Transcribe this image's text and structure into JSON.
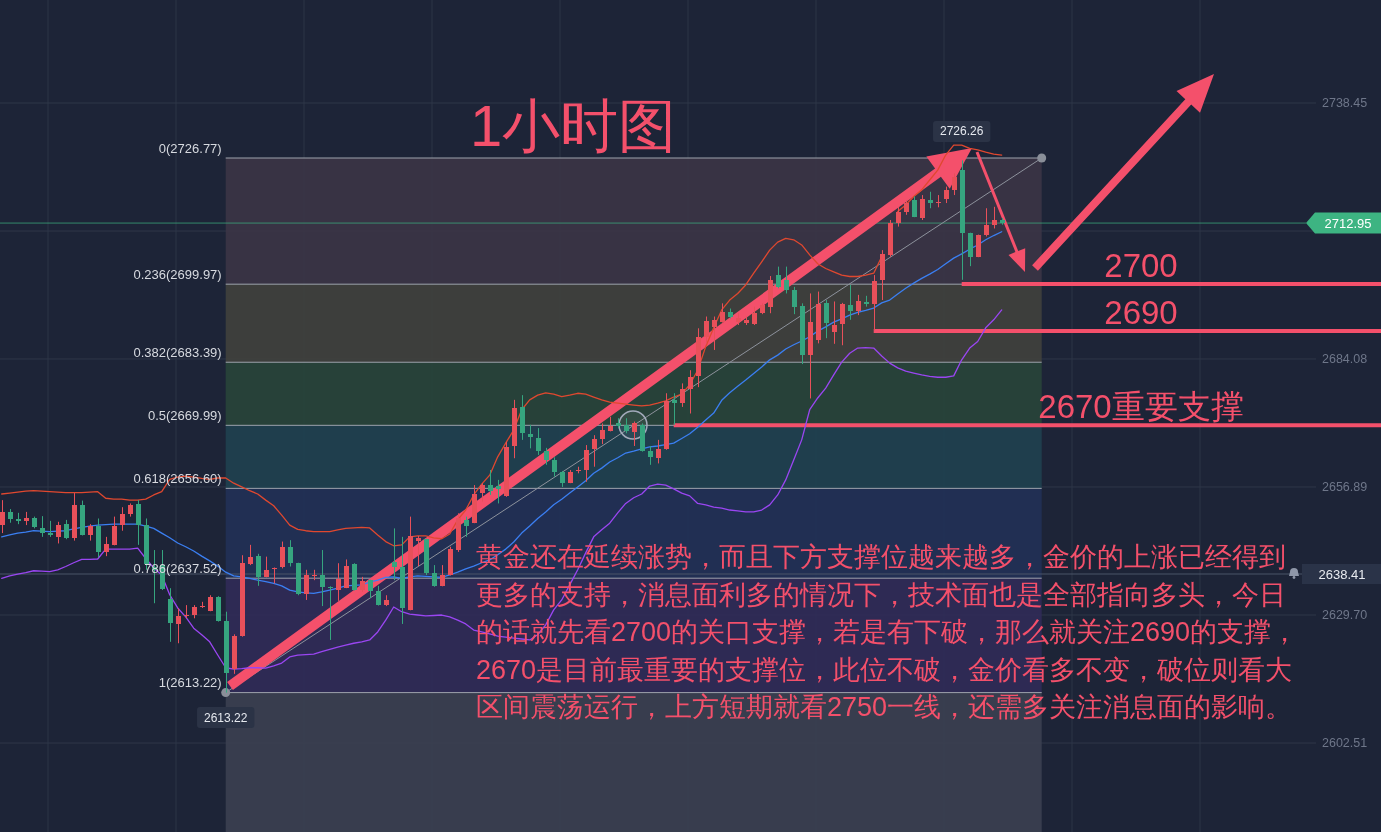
{
  "chart_data": {
    "type": "candlestick",
    "title": "1小时图",
    "categories": [
      null,
      null,
      null,
      null,
      null,
      null,
      null,
      null,
      null,
      null,
      null,
      null,
      null,
      null,
      null,
      null,
      null,
      null,
      null,
      null,
      null,
      null,
      null,
      null,
      null,
      null,
      null,
      null,
      null,
      null,
      null,
      null,
      null,
      null,
      null,
      null,
      null,
      null,
      null,
      null,
      null,
      null,
      null,
      null,
      null,
      null,
      null,
      null,
      null,
      null,
      null,
      null,
      null,
      null,
      null,
      null,
      null,
      null,
      null,
      null,
      null,
      null,
      null,
      null,
      null,
      null,
      null,
      null,
      null,
      null,
      null,
      null,
      null,
      null,
      null,
      null,
      null,
      null,
      null,
      null,
      null,
      null,
      null,
      null,
      null,
      null,
      null,
      null,
      null,
      null,
      null,
      null,
      null,
      null,
      null,
      null,
      null,
      null,
      null,
      null,
      null,
      null,
      null,
      null,
      null,
      null,
      null,
      null,
      null,
      null,
      null,
      null,
      null,
      null,
      null,
      null,
      null,
      null,
      null,
      null,
      null,
      null,
      null,
      null,
      null,
      null
    ],
    "ohlc": [
      [
        2648.8,
        2654.1,
        2647.1,
        2651.6
      ],
      [
        2651.6,
        2652.2,
        2649.3,
        2650.0
      ],
      [
        2650.0,
        2651.4,
        2649.0,
        2649.7
      ],
      [
        2649.7,
        2651.6,
        2648.8,
        2650.4
      ],
      [
        2650.4,
        2650.6,
        2648.1,
        2648.3
      ],
      [
        2648.2,
        2650.7,
        2646.3,
        2647.1
      ],
      [
        2647.1,
        2649.7,
        2646.3,
        2646.6
      ],
      [
        2646.3,
        2649.5,
        2644.9,
        2648.8
      ],
      [
        2649.0,
        2649.9,
        2645.8,
        2646.0
      ],
      [
        2646.0,
        2655.6,
        2645.5,
        2653.1
      ],
      [
        2653.1,
        2654.0,
        2646.6,
        2646.7
      ],
      [
        2646.7,
        2649.0,
        2645.5,
        2648.6
      ],
      [
        2648.6,
        2650.2,
        2642.0,
        2643.1
      ],
      [
        2643.1,
        2646.3,
        2642.2,
        2644.8
      ],
      [
        2644.6,
        2650.6,
        2644.5,
        2648.7
      ],
      [
        2648.8,
        2652.6,
        2647.6,
        2651.2
      ],
      [
        2651.2,
        2653.4,
        2650.6,
        2653.1
      ],
      [
        2653.3,
        2654.1,
        2644.6,
        2648.8
      ],
      [
        2648.8,
        2650.2,
        2639.3,
        2640.5
      ],
      [
        2640.0,
        2643.5,
        2632.2,
        2639.3
      ],
      [
        2640.3,
        2643.5,
        2635.0,
        2635.2
      ],
      [
        2633.0,
        2635.4,
        2624.0,
        2627.9
      ],
      [
        2627.8,
        2631.1,
        2623.7,
        2629.5
      ],
      [
        2629.5,
        2631.8,
        2629.0,
        2629.7
      ],
      [
        2629.6,
        2631.8,
        2629.0,
        2631.3
      ],
      [
        2631.3,
        2632.5,
        2631.2,
        2631.6
      ],
      [
        2630.6,
        2633.9,
        2630.5,
        2633.6
      ],
      [
        2633.6,
        2633.7,
        2628.3,
        2628.4
      ],
      [
        2628.4,
        2630.4,
        2613.22,
        2617.4
      ],
      [
        2618.2,
        2625.6,
        2617.2,
        2625.3
      ],
      [
        2625.3,
        2642.4,
        2625.1,
        2640.7
      ],
      [
        2640.5,
        2644.6,
        2640.3,
        2642.0
      ],
      [
        2642.2,
        2642.7,
        2635.9,
        2637.8
      ],
      [
        2637.8,
        2642.1,
        2637.7,
        2639.3
      ],
      [
        2639.4,
        2639.8,
        2636.4,
        2639.7
      ],
      [
        2639.8,
        2645.3,
        2639.6,
        2644.1
      ],
      [
        2644.1,
        2645.6,
        2640.0,
        2640.7
      ],
      [
        2640.7,
        2640.8,
        2633.9,
        2634.1
      ],
      [
        2634.1,
        2639.3,
        2632.9,
        2638.2
      ],
      [
        2638.1,
        2639.3,
        2637.1,
        2638.3
      ],
      [
        2638.3,
        2643.5,
        2631.6,
        2635.7
      ],
      [
        2635.7,
        2635.8,
        2624.4,
        2635.4
      ],
      [
        2635.0,
        2640.7,
        2632.7,
        2637.3
      ],
      [
        2635.5,
        2641.5,
        2635.4,
        2640.1
      ],
      [
        2640.5,
        2640.7,
        2634.9,
        2635.0
      ],
      [
        2635.0,
        2637.8,
        2634.6,
        2636.9
      ],
      [
        2637.1,
        2637.2,
        2633.3,
        2634.9
      ],
      [
        2634.8,
        2635.9,
        2631.7,
        2631.8
      ],
      [
        2631.8,
        2633.9,
        2631.6,
        2632.9
      ],
      [
        2641.0,
        2648.1,
        2637.1,
        2639.8
      ],
      [
        2639.8,
        2646.3,
        2627.8,
        2631.1
      ],
      [
        2630.8,
        2650.6,
        2630.7,
        2646.5
      ],
      [
        2645.5,
        2646.5,
        2640.1,
        2646.0
      ],
      [
        2645.8,
        2645.9,
        2638.2,
        2638.7
      ],
      [
        2638.7,
        2640.3,
        2635.7,
        2635.9
      ],
      [
        2635.9,
        2640.3,
        2635.8,
        2638.2
      ],
      [
        2638.2,
        2644.2,
        2638.1,
        2643.7
      ],
      [
        2643.5,
        2651.3,
        2643.1,
        2650.4
      ],
      [
        2649.9,
        2650.6,
        2646.3,
        2648.6
      ],
      [
        2649.3,
        2657.3,
        2649.2,
        2655.4
      ],
      [
        2655.7,
        2657.7,
        2653.8,
        2657.3
      ],
      [
        2657.3,
        2660.5,
        2655.2,
        2656.1
      ],
      [
        2657.1,
        2658.4,
        2653.4,
        2656.5
      ],
      [
        2655.0,
        2666.5,
        2654.8,
        2665.3
      ],
      [
        2665.6,
        2675.4,
        2663.0,
        2673.6
      ],
      [
        2673.8,
        2676.4,
        2666.9,
        2668.3
      ],
      [
        2668.2,
        2670.1,
        2665.1,
        2667.6
      ],
      [
        2667.4,
        2669.4,
        2663.7,
        2664.6
      ],
      [
        2664.5,
        2665.2,
        2661.6,
        2662.6
      ],
      [
        2662.6,
        2663.2,
        2659.1,
        2660.1
      ],
      [
        2660.1,
        2660.3,
        2656.9,
        2657.8
      ],
      [
        2657.8,
        2660.5,
        2657.7,
        2660.1
      ],
      [
        2660.4,
        2661.2,
        2659.8,
        2660.5
      ],
      [
        2660.5,
        2665.8,
        2658.0,
        2664.8
      ],
      [
        2665.0,
        2667.9,
        2661.2,
        2667.0
      ],
      [
        2667.1,
        2670.4,
        2666.0,
        2669.0
      ],
      [
        2668.8,
        2671.8,
        2668.7,
        2669.8
      ],
      [
        2670.4,
        2671.5,
        2669.4,
        2669.8
      ],
      [
        2670.1,
        2671.5,
        2668.3,
        2668.8
      ],
      [
        2668.6,
        2670.8,
        2665.6,
        2670.4
      ],
      [
        2670.1,
        2670.4,
        2664.4,
        2664.5
      ],
      [
        2664.5,
        2665.6,
        2661.6,
        2663.2
      ],
      [
        2663.0,
        2666.9,
        2661.9,
        2665.0
      ],
      [
        2665.0,
        2676.8,
        2664.8,
        2675.2
      ],
      [
        2675.4,
        2676.8,
        2670.1,
        2674.7
      ],
      [
        2674.7,
        2678.9,
        2673.9,
        2677.6
      ],
      [
        2677.6,
        2681.7,
        2672.5,
        2680.3
      ],
      [
        2680.5,
        2690.6,
        2678.1,
        2688.8
      ],
      [
        2688.8,
        2693.1,
        2687.4,
        2692.1
      ],
      [
        2690.9,
        2693.1,
        2686.0,
        2692.4
      ],
      [
        2692.0,
        2695.9,
        2691.8,
        2694.1
      ],
      [
        2694.1,
        2694.8,
        2692.7,
        2693.1
      ],
      [
        2692.0,
        2693.8,
        2691.3,
        2692.8
      ],
      [
        2691.7,
        2693.1,
        2691.3,
        2692.4
      ],
      [
        2691.5,
        2695.2,
        2691.3,
        2693.8
      ],
      [
        2693.8,
        2695.9,
        2693.6,
        2695.5
      ],
      [
        2695.2,
        2701.7,
        2693.8,
        2700.9
      ],
      [
        2701.9,
        2703.7,
        2699.1,
        2699.4
      ],
      [
        2700.9,
        2703.7,
        2698.0,
        2698.7
      ],
      [
        2698.7,
        2699.4,
        2693.6,
        2695.2
      ],
      [
        2695.4,
        2695.9,
        2683.0,
        2684.9
      ],
      [
        2684.9,
        2698.0,
        2675.7,
        2692.0
      ],
      [
        2688.1,
        2698.4,
        2687.4,
        2695.7
      ],
      [
        2695.9,
        2696.6,
        2688.5,
        2691.7
      ],
      [
        2689.9,
        2696.3,
        2687.3,
        2691.3
      ],
      [
        2691.5,
        2696.0,
        2687.0,
        2695.7
      ],
      [
        2695.5,
        2699.8,
        2692.4,
        2694.3
      ],
      [
        2694.3,
        2697.7,
        2693.4,
        2696.3
      ],
      [
        2696.1,
        2697.5,
        2695.2,
        2695.7
      ],
      [
        2695.7,
        2701.9,
        2690.2,
        2700.6
      ],
      [
        2700.9,
        2707.2,
        2696.6,
        2706.3
      ],
      [
        2706.2,
        2713.6,
        2705.8,
        2713.0
      ],
      [
        2713.0,
        2716.4,
        2712.2,
        2715.4
      ],
      [
        2715.2,
        2717.8,
        2714.7,
        2717.2
      ],
      [
        2717.8,
        2718.6,
        2714.2,
        2714.3
      ],
      [
        2714.0,
        2718.9,
        2713.6,
        2718.0
      ],
      [
        2717.8,
        2719.6,
        2716.1,
        2717.2
      ],
      [
        2717.2,
        2718.9,
        2716.3,
        2717.5
      ],
      [
        2718.0,
        2720.7,
        2717.2,
        2720.0
      ],
      [
        2720.0,
        2723.5,
        2718.9,
        2722.8
      ],
      [
        2724.2,
        2726.26,
        2700.9,
        2710.9
      ],
      [
        2710.8,
        2710.9,
        2703.8,
        2705.8
      ],
      [
        2705.8,
        2710.5,
        2705.7,
        2710.4
      ],
      [
        2710.4,
        2716.1,
        2710.1,
        2712.5
      ],
      [
        2712.5,
        2716.4,
        2711.8,
        2713.6
      ],
      [
        2713.6,
        2714.0,
        2712.6,
        2712.95
      ]
    ],
    "colors": [
      "#e8505a",
      "#36a57f",
      "#36a57f",
      "#e8505a",
      "#36a57f",
      "#36a57f",
      "#36a57f",
      "#e8505a",
      "#36a57f",
      "#e8505a",
      "#36a57f",
      "#e8505a",
      "#36a57f",
      "#e8505a",
      "#e8505a",
      "#e8505a",
      "#e8505a",
      "#36a57f",
      "#36a57f",
      "#36a57f",
      "#36a57f",
      "#36a57f",
      "#e8505a",
      "#e8505a",
      "#e8505a",
      "#e8505a",
      "#e8505a",
      "#36a57f",
      "#36a57f",
      "#e8505a",
      "#e8505a",
      "#e8505a",
      "#36a57f",
      "#e8505a",
      "#e8505a",
      "#e8505a",
      "#36a57f",
      "#36a57f",
      "#e8505a",
      "#e8505a",
      "#36a57f",
      "#36a57f",
      "#e8505a",
      "#e8505a",
      "#36a57f",
      "#e8505a",
      "#36a57f",
      "#36a57f",
      "#e8505a",
      "#36a57f",
      "#36a57f",
      "#e8505a",
      "#e8505a",
      "#36a57f",
      "#36a57f",
      "#e8505a",
      "#e8505a",
      "#e8505a",
      "#36a57f",
      "#e8505a",
      "#e8505a",
      "#36a57f",
      "#36a57f",
      "#e8505a",
      "#e8505a",
      "#36a57f",
      "#36a57f",
      "#36a57f",
      "#36a57f",
      "#36a57f",
      "#36a57f",
      "#e8505a",
      "#e8505a",
      "#e8505a",
      "#e8505a",
      "#e8505a",
      "#e8505a",
      "#36a57f",
      "#36a57f",
      "#e8505a",
      "#36a57f",
      "#36a57f",
      "#e8505a",
      "#e8505a",
      "#36a57f",
      "#e8505a",
      "#e8505a",
      "#e8505a",
      "#e8505a",
      "#e8505a",
      "#e8505a",
      "#36a57f",
      "#e8505a",
      "#e8505a",
      "#e8505a",
      "#e8505a",
      "#e8505a",
      "#36a57f",
      "#36a57f",
      "#36a57f",
      "#36a57f",
      "#e8505a",
      "#e8505a",
      "#36a57f",
      "#e8505a",
      "#e8505a",
      "#36a57f",
      "#e8505a",
      "#36a57f",
      "#e8505a",
      "#e8505a",
      "#e8505a",
      "#e8505a",
      "#e8505a",
      "#36a57f",
      "#e8505a",
      "#36a57f",
      "#e8505a",
      "#e8505a",
      "#e8505a",
      "#36a57f",
      "#36a57f",
      "#e8505a",
      "#e8505a",
      "#e8505a",
      "#36a57f"
    ],
    "series": [
      {
        "type": "line",
        "color": "#e0482f",
        "values": [
          2655.4,
          2655.6,
          2655.8,
          2656.0,
          2656.1,
          2656.0,
          2655.9,
          2655.8,
          2655.7,
          2655.7,
          2655.7,
          2655.8,
          2655.9,
          2654.5,
          2654.3,
          2654.3,
          2654.1,
          2654.1,
          2654.3,
          2655.2,
          2655.9,
          2658.5,
          2659.0,
          2659.2,
          2659.0,
          2658.7,
          2658.5,
          2658.8,
          2658.8,
          2657.7,
          2656.9,
          2656.1,
          2655.4,
          2654.1,
          2652.9,
          2650.9,
          2648.8,
          2647.9,
          2647.6,
          2647.4,
          2647.4,
          2647.4,
          2647.8,
          2648.1,
          2648.2,
          2648.3,
          2648.2,
          2646.7,
          2645.3,
          2644.4,
          2644.6,
          2646.3,
          2646.5,
          2646.5,
          2646.1,
          2645.9,
          2646.9,
          2649.9,
          2652.0,
          2655.2,
          2657.5,
          2659.4,
          2663.3,
          2666.2,
          2669.0,
          2673.3,
          2675.4,
          2676.4,
          2676.9,
          2676.6,
          2676.1,
          2676.4,
          2676.8,
          2676.6,
          2676.0,
          2675.4,
          2674.9,
          2674.7,
          2674.5,
          2674.3,
          2674.1,
          2674.3,
          2674.7,
          2675.2,
          2676.0,
          2676.6,
          2678.6,
          2681.7,
          2686.7,
          2690.7,
          2694.5,
          2696.6,
          2698.0,
          2699.8,
          2702.3,
          2704.7,
          2707.2,
          2708.9,
          2709.7,
          2709.4,
          2708.3,
          2706.2,
          2704.3,
          2703.3,
          2702.6,
          2701.9,
          2701.6,
          2701.6,
          2701.9,
          2702.3,
          2705.8,
          null,
          2715.4,
          2716.8,
          2718.6,
          2720.0,
          2722.1,
          2724.2,
          2727.4,
          2729.5,
          2729.5,
          2728.8,
          2728.5,
          2728.0,
          2727.6,
          2727.4
        ]
      },
      {
        "type": "line",
        "color": "#3b7ff2",
        "values": [
          2646.3,
          2646.7,
          2647.1,
          2647.3,
          2647.6,
          2647.5,
          2647.4,
          2647.5,
          2647.6,
          2648.0,
          2648.3,
          2648.6,
          2648.8,
          2648.9,
          2649.0,
          2649.0,
          2649.0,
          2649.0,
          2648.6,
          2648.1,
          2647.1,
          2646.1,
          2645.0,
          2644.2,
          2643.3,
          2642.2,
          2641.2,
          2640.1,
          2638.8,
          2638.0,
          2637.8,
          2637.5,
          2637.1,
          2636.8,
          2636.4,
          2635.9,
          2635.0,
          2634.6,
          2634.4,
          2634.3,
          2634.6,
          2635.0,
          2635.4,
          2635.9,
          2636.0,
          2636.1,
          2636.7,
          2637.1,
          2637.7,
          2637.8,
          2637.5,
          2637.8,
          2638.0,
          2637.9,
          2637.8,
          2637.7,
          2638.2,
          2638.8,
          2639.5,
          2640.1,
          2640.8,
          2641.4,
          2642.5,
          2643.7,
          2645.2,
          2647.1,
          2648.6,
          2650.2,
          2651.6,
          2653.1,
          2654.3,
          2655.6,
          2656.9,
          2658.2,
          2659.8,
          2660.9,
          2662.2,
          2663.1,
          2664.1,
          2664.5,
          2665.0,
          2665.4,
          2665.6,
          2665.9,
          2666.2,
          2667.2,
          2668.2,
          2669.6,
          2671.1,
          2672.6,
          2675.3,
          2676.9,
          2678.3,
          2679.6,
          2681.0,
          2682.4,
          2683.9,
          2684.9,
          2686.2,
          2687.1,
          2687.9,
          2688.8,
          2690.0,
          2690.9,
          2691.9,
          2692.6,
          2693.4,
          2694.0,
          2694.4,
          2694.9,
          2696.0,
          2696.6,
          2697.9,
          2699.1,
          2700.2,
          2701.2,
          2702.1,
          2703.1,
          2704.3,
          2705.5,
          2706.4,
          2707.4,
          2708.3,
          2709.4,
          2710.3,
          2711.1
        ]
      },
      {
        "type": "line",
        "color": "#9a46f2",
        "values": [
          2637.5,
          2638.0,
          2638.4,
          2638.7,
          2639.1,
          2639.0,
          2638.9,
          2639.3,
          2640.0,
          2640.8,
          2641.5,
          2641.5,
          2641.6,
          2643.7,
          2643.7,
          2643.7,
          2643.7,
          2643.9,
          2641.7,
          2639.7,
          2638.2,
          2634.0,
          2631.2,
          2629.3,
          2626.9,
          2625.5,
          2624.0,
          2621.2,
          2618.5,
          2618.2,
          2618.3,
          2618.5,
          2618.5,
          2618.4,
          2618.9,
          2619.5,
          2620.8,
          2621.2,
          2621.3,
          2621.4,
          2621.9,
          2622.4,
          2622.9,
          2623.3,
          2623.7,
          2624.0,
          2624.4,
          2626.1,
          2628.6,
          2631.4,
          2630.4,
          2629.9,
          2629.7,
          2629.5,
          2629.6,
          2629.7,
          2629.3,
          2628.6,
          2627.8,
          2626.5,
          2626.1,
          2625.7,
          2625.2,
          2625.0,
          2624.8,
          2624.6,
          2624.4,
          2625.5,
          2627.6,
          2630.8,
          2632.9,
          2636.1,
          2639.3,
          2642.9,
          2646.3,
          2647.8,
          2649.2,
          2651.4,
          2653.4,
          2654.6,
          2655.4,
          2657.1,
          2657.5,
          2657.3,
          2656.5,
          2655.6,
          2655.0,
          2653.4,
          2653.1,
          2652.6,
          2652.4,
          2652.0,
          2651.8,
          2651.6,
          2651.6,
          2652.0,
          2653.1,
          2655.2,
          2658.4,
          2662.6,
          2666.9,
          2673.3,
          2675.8,
          2677.9,
          2680.7,
          2683.4,
          2685.3,
          2686.4,
          2686.5,
          2686.4,
          2684.7,
          2683.2,
          2682.2,
          2681.5,
          2681.1,
          2680.7,
          2680.4,
          2680.2,
          2680.2,
          2680.5,
          2683.9,
          2686.4,
          2687.8,
          2690.7,
          2692.4,
          2694.5
        ]
      }
    ],
    "ylim": [
      2583.61,
      2760.33
    ],
    "yticks": [
      2602.51,
      {
        "value": 2629.7,
        "label": "2629.70"
      },
      2656.89,
      2684.08,
      {
        "value": 2711.26,
        "label": null
      },
      2738.45
    ],
    "grid": true,
    "tick_labels": "y",
    "bands": [
      {
        "axis": "y",
        "from": 2699.97,
        "to": 2726.77,
        "color": "#3b3545",
        "label": "0(2726.77)"
      },
      {
        "axis": "y",
        "from": 2683.39,
        "to": 2699.97,
        "color": "#40413d",
        "label": "0.236(2699.97)"
      },
      {
        "axis": "y",
        "from": 2669.99,
        "to": 2683.39,
        "color": "#28443a",
        "label": "0.382(2683.39)"
      },
      {
        "axis": "y",
        "from": 2656.6,
        "to": 2669.99,
        "color": "#1f414f",
        "label": "0.5(2669.99)"
      },
      {
        "axis": "y",
        "from": 2637.52,
        "to": 2656.6,
        "color": "#223156",
        "label": "0.618(2656.60)"
      },
      {
        "axis": "y",
        "from": 2613.22,
        "to": 2637.52,
        "color": "#302b57",
        "label": "0.786(2637.52)"
      },
      {
        "axis": "y",
        "from": 2583.61,
        "to": 2613.22,
        "color": "#3b4050",
        "label": "1(2613.22)"
      }
    ],
    "ref_lines": [
      {
        "axis": "y",
        "value": 2700,
        "label": "2700",
        "color": "#f4506b"
      },
      {
        "axis": "y",
        "value": 2690,
        "label": "2690",
        "color": "#f4506b"
      },
      {
        "axis": "y",
        "value": 2670,
        "label": "2670重要支撑",
        "color": "#f4506b"
      },
      {
        "axis": "y",
        "value": 2712.95,
        "label": "2712.95",
        "color": "#3db482"
      },
      {
        "axis": "y",
        "value": 2638.41,
        "label": "2638.41",
        "color": "#4b5468"
      }
    ],
    "annotations": [
      "黄金还在延续涨势，而且下方支撑位越来越多，金价的上涨已经得到更多的支持，消息面利多的情况下，技术面也是全部指向多头，今日的话就先看2700的关口支撑，若是有下破，那么就关注2690的支撑，2670是目前最重要的支撑位，此位不破，金价看多不变，破位则看大区间震荡运行，上方短期就看2750一线，还需多关注消息面的影响。",
      {
        "text": "2726.26",
        "y": 2726.26
      },
      {
        "text": "2613.22",
        "y": 2613.22
      }
    ]
  }
}
